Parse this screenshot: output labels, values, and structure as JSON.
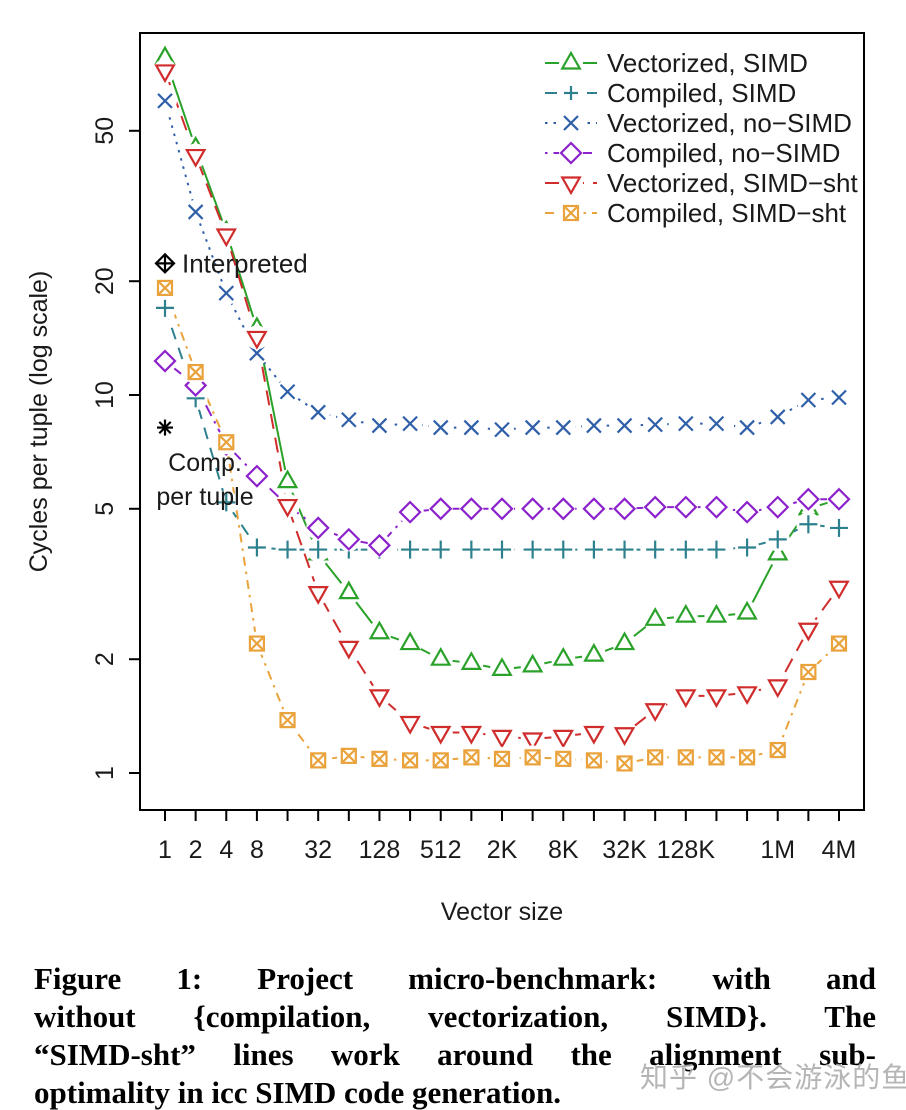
{
  "chart_data": {
    "type": "line",
    "title": "",
    "xlabel": "Vector size",
    "ylabel": "Cycles per tuple (log scale)",
    "x_scale": "log2",
    "y_scale": "log10",
    "ylim": [
      1,
      80
    ],
    "grid": false,
    "legend_position": "top-right-inside-no-box",
    "x_categories": [
      "1",
      "2",
      "4",
      "8",
      "16",
      "32",
      "64",
      "128",
      "256",
      "512",
      "1K",
      "2K",
      "4K",
      "8K",
      "16K",
      "32K",
      "64K",
      "128K",
      "256K",
      "512K",
      "1M",
      "2M",
      "4M"
    ],
    "x_tick_labels_shown": [
      "1",
      "2",
      "4",
      "8",
      "32",
      "128",
      "512",
      "2K",
      "8K",
      "32K",
      "128K",
      "1M",
      "4M"
    ],
    "y_tick_values": [
      1,
      2,
      5,
      10,
      20,
      50
    ],
    "series": [
      {
        "name": "Vectorized, SIMD",
        "color": "#2aa22a",
        "marker": "triangle-up",
        "dash": "solid",
        "values": [
          78,
          45,
          27,
          15,
          5.9,
          3.8,
          3.0,
          2.35,
          2.2,
          2.0,
          1.95,
          1.88,
          1.92,
          2.0,
          2.05,
          2.2,
          2.55,
          2.6,
          2.6,
          2.65,
          3.8,
          5.0,
          5.3
        ]
      },
      {
        "name": "Compiled, SIMD",
        "color": "#2d808d",
        "marker": "plus",
        "dash": "dashed",
        "values": [
          17,
          9.8,
          5.2,
          3.95,
          3.9,
          3.9,
          3.9,
          3.9,
          3.9,
          3.9,
          3.9,
          3.9,
          3.9,
          3.9,
          3.9,
          3.9,
          3.9,
          3.9,
          3.9,
          3.95,
          4.15,
          4.55,
          4.45
        ]
      },
      {
        "name": "Vectorized, no−SIMD",
        "color": "#2f5fa8",
        "marker": "x",
        "dash": "dotted",
        "values": [
          60,
          30.5,
          18.6,
          12.9,
          10.2,
          9.0,
          8.6,
          8.3,
          8.4,
          8.2,
          8.2,
          8.1,
          8.2,
          8.2,
          8.3,
          8.3,
          8.35,
          8.4,
          8.4,
          8.2,
          8.75,
          9.7,
          9.85
        ]
      },
      {
        "name": "Compiled, no−SIMD",
        "color": "#8b22cc",
        "marker": "diamond",
        "dash": "dashdot",
        "values": [
          12.3,
          10.6,
          7.4,
          6.1,
          5.1,
          4.45,
          4.15,
          4.0,
          4.9,
          5.0,
          5.0,
          5.0,
          5.0,
          5.0,
          5.0,
          5.0,
          5.05,
          5.05,
          5.05,
          4.9,
          5.05,
          5.3,
          5.3
        ]
      },
      {
        "name": "Vectorized, SIMD−sht",
        "color": "#d02c2c",
        "marker": "triangle-down",
        "dash": "longdash",
        "values": [
          72,
          43,
          26.5,
          14.2,
          5.1,
          3.0,
          2.15,
          1.6,
          1.36,
          1.28,
          1.28,
          1.25,
          1.23,
          1.25,
          1.28,
          1.27,
          1.47,
          1.6,
          1.6,
          1.63,
          1.7,
          2.4,
          3.1
        ]
      },
      {
        "name": "Compiled, SIMD−sht",
        "color": "#eaa33c",
        "marker": "square-x",
        "dash": "dashdotdot",
        "values": [
          19.2,
          11.5,
          7.5,
          2.2,
          1.38,
          1.08,
          1.11,
          1.09,
          1.08,
          1.08,
          1.1,
          1.09,
          1.1,
          1.09,
          1.08,
          1.06,
          1.1,
          1.1,
          1.1,
          1.1,
          1.15,
          1.85,
          2.2
        ]
      }
    ],
    "annotations": [
      {
        "label": "Interpreted",
        "label_lines": [
          "Interpreted"
        ],
        "marker": "diamond-plus",
        "color": "#000000",
        "x": "1",
        "value": 22.3
      },
      {
        "label": "Comp. per tuple",
        "label_lines": [
          "Comp.",
          "per tuple"
        ],
        "marker": "asterisk",
        "color": "#000000",
        "x": "1",
        "value": 8.2
      }
    ]
  },
  "caption": {
    "lines": [
      "Figure 1:  Project micro-benchmark:  with and",
      "without {compilation, vectorization, SIMD}.  The",
      "“SIMD-sht” lines work around the alignment sub-",
      "optimality in icc SIMD code generation."
    ]
  },
  "watermark": "知乎 @不会游泳的鱼"
}
